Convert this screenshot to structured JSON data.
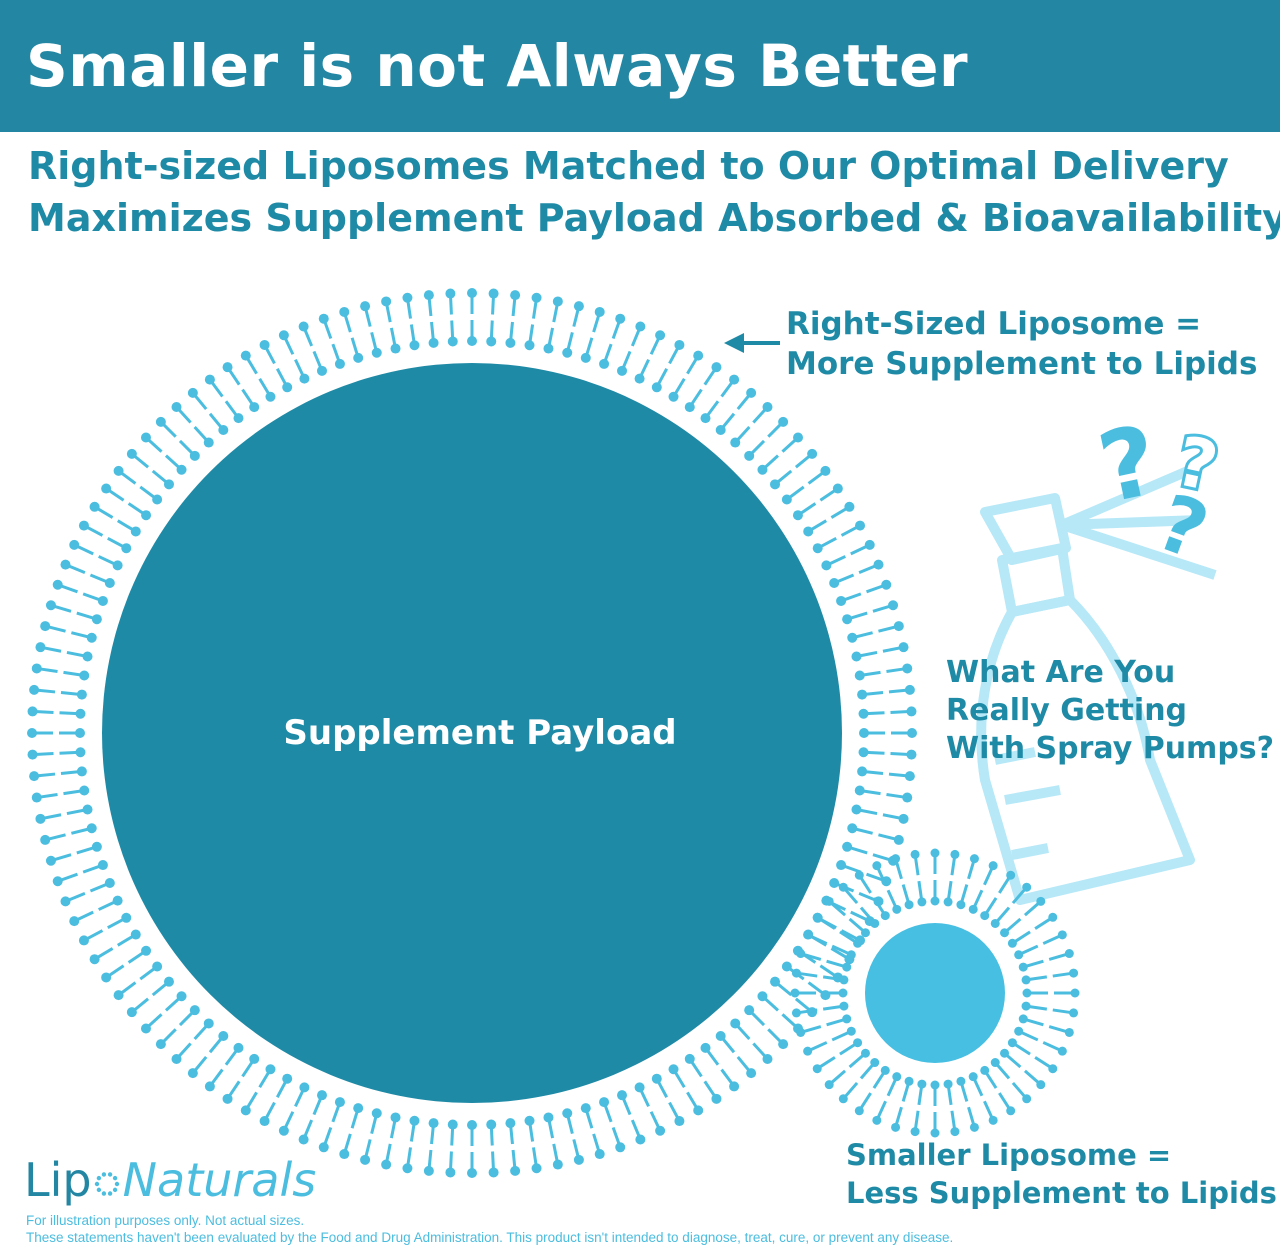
{
  "header": {
    "title": "Smaller is not Always Better"
  },
  "subtitle": {
    "line1": "Right-sized Liposomes Matched to Our Optimal Delivery",
    "line2": "Maximizes Supplement Payload Absorbed & Bioavailability"
  },
  "diagram": {
    "payload_label": "Supplement Payload",
    "right_sized_label": {
      "line1": "Right-Sized Liposome =",
      "line2": "More Supplement to Lipids"
    },
    "spray_question": {
      "line1": "What Are You",
      "line2": "Really Getting",
      "line3": "With Spray Pumps?"
    },
    "smaller_label": {
      "line1": "Smaller Liposome =",
      "line2": "Less Supplement to Lipids"
    },
    "question_marks": [
      "?",
      "?",
      "?"
    ]
  },
  "brand": {
    "logo_part1": "Lip",
    "logo_part2": "Naturals"
  },
  "footer": {
    "line1": "For illustration purposes only. Not actual sizes.",
    "line2": "These statements haven't been evaluated by the Food and Drug Administration. This product isn't intended to diagnose, treat, cure, or prevent any disease."
  },
  "colors": {
    "banner": "#2387a4",
    "payload": "#1f8aa6",
    "lipid": "#4bbddf",
    "small_core": "#47bfe2",
    "spray_outline": "#b6e8f7"
  },
  "icons": [
    "arrow-left-icon",
    "spray-bottle-icon",
    "question-mark-icon",
    "liposome-icon"
  ]
}
